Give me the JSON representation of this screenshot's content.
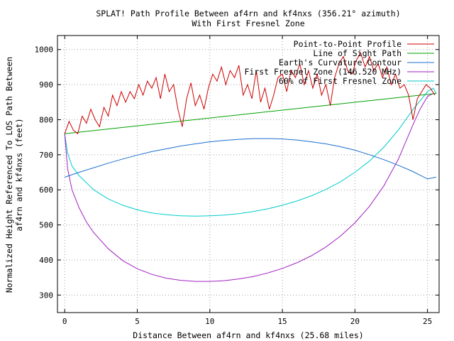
{
  "chart_data": {
    "type": "line",
    "title": "SPLAT! Path Profile Between af4rn and kf4nxs (356.21° azimuth)",
    "subtitle": "With First Fresnel Zone",
    "xlabel": "Distance Between af4rn and kf4nxs (25.68 miles)",
    "ylabel_line1": "Normalized Height Referenced To LOS Path Between",
    "ylabel_line2": "af4rn and kf4nxs (feet)",
    "xlim": [
      -0.5,
      25.8
    ],
    "ylim": [
      250,
      1040
    ],
    "xticks": [
      0,
      5,
      10,
      15,
      20,
      25
    ],
    "yticks": [
      300,
      400,
      500,
      600,
      700,
      800,
      900,
      1000
    ],
    "grid": true,
    "legend_position": "top-right",
    "series": [
      {
        "name": "Point-to-Point Profile",
        "color": "#cc0000",
        "x": [
          0,
          0.3,
          0.6,
          0.9,
          1.2,
          1.5,
          1.8,
          2.1,
          2.4,
          2.7,
          3.0,
          3.3,
          3.6,
          3.9,
          4.2,
          4.5,
          4.8,
          5.1,
          5.4,
          5.7,
          6.0,
          6.3,
          6.6,
          6.9,
          7.2,
          7.5,
          7.8,
          8.1,
          8.4,
          8.7,
          9.0,
          9.3,
          9.6,
          9.9,
          10.2,
          10.5,
          10.8,
          11.1,
          11.4,
          11.7,
          12.0,
          12.3,
          12.6,
          12.9,
          13.2,
          13.5,
          13.8,
          14.1,
          14.4,
          14.7,
          15.0,
          15.3,
          15.6,
          15.9,
          16.2,
          16.5,
          16.8,
          17.1,
          17.4,
          17.7,
          18.0,
          18.3,
          18.6,
          18.9,
          19.2,
          19.5,
          19.8,
          20.1,
          20.4,
          20.7,
          21.0,
          21.3,
          21.6,
          21.9,
          22.2,
          22.5,
          22.8,
          23.1,
          23.4,
          23.7,
          24.0,
          24.3,
          24.6,
          24.9,
          25.2,
          25.5
        ],
        "y": [
          760,
          795,
          770,
          760,
          810,
          790,
          830,
          800,
          780,
          835,
          810,
          870,
          840,
          880,
          850,
          880,
          860,
          900,
          870,
          910,
          890,
          920,
          860,
          930,
          880,
          900,
          830,
          780,
          860,
          905,
          840,
          870,
          830,
          890,
          930,
          910,
          950,
          900,
          940,
          920,
          955,
          870,
          900,
          860,
          940,
          850,
          890,
          830,
          870,
          920,
          930,
          880,
          940,
          920,
          960,
          900,
          940,
          890,
          930,
          870,
          900,
          840,
          920,
          960,
          980,
          940,
          930,
          970,
          990,
          950,
          980,
          940,
          960,
          920,
          950,
          900,
          930,
          890,
          900,
          870,
          800,
          860,
          880,
          900,
          890,
          870
        ]
      },
      {
        "name": "Line of Sight Path",
        "color": "#00a000",
        "x": [
          0,
          25.6
        ],
        "y": [
          760,
          875
        ]
      },
      {
        "name": "Earth's Curvature Contour",
        "color": "#1a6fd0",
        "x": [
          0,
          1,
          2,
          3,
          4,
          5,
          6,
          7,
          8,
          9,
          10,
          11,
          12,
          13,
          14,
          15,
          16,
          17,
          18,
          19,
          20,
          21,
          22,
          23,
          24,
          25,
          25.6
        ],
        "y": [
          636,
          650,
          663,
          676,
          688,
          699,
          709,
          717,
          725,
          731,
          737,
          741,
          744,
          746,
          746,
          745,
          742,
          737,
          731,
          723,
          713,
          700,
          686,
          670,
          652,
          631,
          636
        ]
      },
      {
        "name": "First Fresnel Zone (146.520 MHz)",
        "color": "#a020c0",
        "x": [
          0,
          0.2,
          0.5,
          1,
          1.5,
          2,
          3,
          4,
          5,
          6,
          7,
          8,
          9,
          10,
          11,
          12,
          13,
          14,
          15,
          16,
          17,
          18,
          19,
          20,
          21,
          22,
          23,
          24,
          24.5,
          25,
          25.3,
          25.6
        ],
        "y": [
          760,
          660,
          600,
          548,
          508,
          478,
          432,
          398,
          375,
          359,
          348,
          342,
          339,
          339,
          341,
          346,
          353,
          363,
          376,
          392,
          412,
          437,
          468,
          506,
          553,
          612,
          688,
          786,
          831,
          866,
          873,
          875
        ]
      },
      {
        "name": "60% of First Fresnel Zone",
        "color": "#00cccc",
        "x": [
          0,
          0.2,
          0.5,
          1,
          2,
          3,
          4,
          5,
          6,
          7,
          8,
          9,
          10,
          11,
          12,
          13,
          14,
          15,
          16,
          17,
          18,
          19,
          20,
          21,
          22,
          23,
          24,
          25,
          25.4,
          25.6
        ],
        "y": [
          760,
          705,
          668,
          640,
          600,
          574,
          556,
          543,
          534,
          529,
          526,
          525,
          526,
          528,
          532,
          538,
          546,
          556,
          568,
          583,
          601,
          623,
          650,
          682,
          722,
          771,
          829,
          880,
          890,
          875
        ]
      }
    ]
  }
}
